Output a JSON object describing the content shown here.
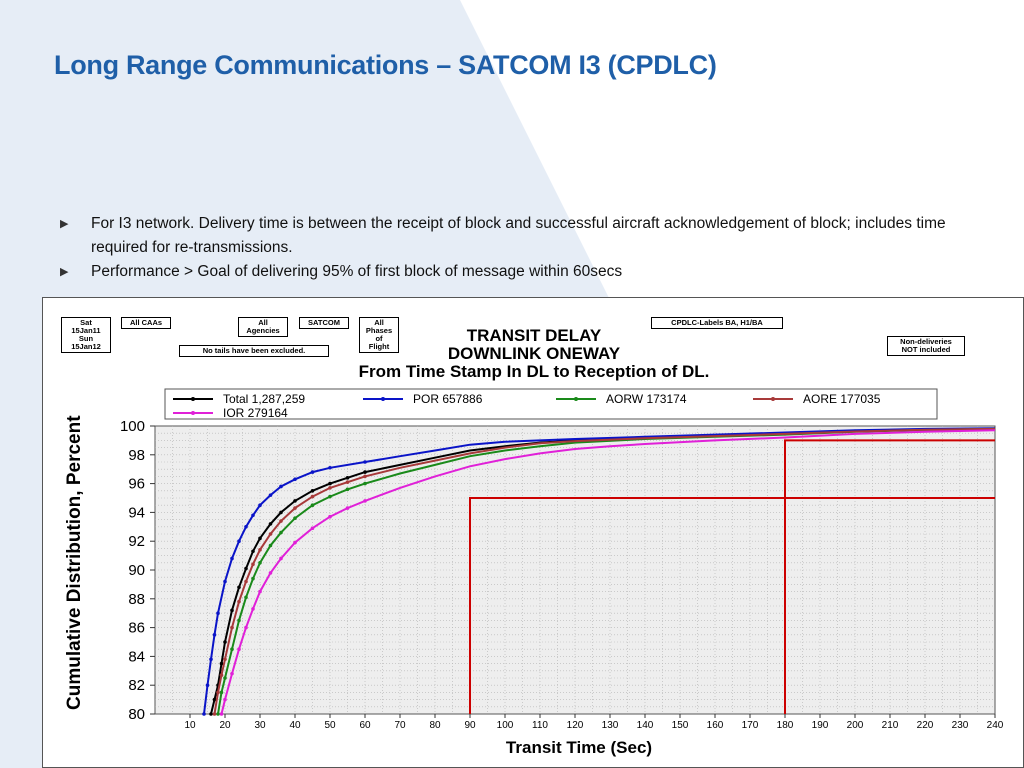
{
  "slide": {
    "title": "Long Range Communications – SATCOM I3 (CPDLC)",
    "bullets": [
      "For I3 network.  Delivery time is between the receipt of block and successful aircraft  acknowledgement of block; includes time required for re-transmissions.",
      "Performance > Goal of delivering 95% of first block of message within 60secs"
    ]
  },
  "filters": {
    "date": "Sat\n15Jan11\nSun\n15Jan12",
    "caas": "All CAAs",
    "agencies": "All\nAgencies",
    "network": "SATCOM",
    "phases": "All\nPhases\nof\nFlight",
    "tails": "No tails have been excluded.",
    "labels": "CPDLC-Labels BA, H1/BA",
    "nondelivery": "Non-deliveries\nNOT included"
  },
  "chart_data": {
    "type": "line",
    "title_lines": [
      "TRANSIT DELAY",
      "DOWNLINK ONEWAY",
      "From Time Stamp In DL to Reception of DL."
    ],
    "xlabel": "Transit Time (Sec)",
    "ylabel": "Cumulative Distribution, Percent",
    "xlim": [
      0,
      240
    ],
    "ylim": [
      80,
      100
    ],
    "x_ticks": [
      10,
      20,
      30,
      40,
      50,
      60,
      70,
      80,
      90,
      100,
      110,
      120,
      130,
      140,
      150,
      160,
      170,
      180,
      190,
      200,
      210,
      220,
      230,
      240
    ],
    "y_ticks": [
      80,
      82,
      84,
      86,
      88,
      90,
      92,
      94,
      96,
      98,
      100
    ],
    "grid": true,
    "legend_position": "top",
    "series": [
      {
        "name": "Total  1,287,259",
        "color": "#000000",
        "points": [
          [
            16,
            80
          ],
          [
            17,
            81
          ],
          [
            18,
            82
          ],
          [
            19,
            83.5
          ],
          [
            20,
            85
          ],
          [
            22,
            87.2
          ],
          [
            24,
            88.8
          ],
          [
            26,
            90.1
          ],
          [
            28,
            91.3
          ],
          [
            30,
            92.2
          ],
          [
            33,
            93.2
          ],
          [
            36,
            94.0
          ],
          [
            40,
            94.8
          ],
          [
            45,
            95.5
          ],
          [
            50,
            96.0
          ],
          [
            55,
            96.4
          ],
          [
            60,
            96.8
          ],
          [
            70,
            97.3
          ],
          [
            80,
            97.8
          ],
          [
            90,
            98.3
          ],
          [
            100,
            98.6
          ],
          [
            110,
            98.85
          ],
          [
            120,
            99.0
          ],
          [
            140,
            99.2
          ],
          [
            160,
            99.35
          ],
          [
            180,
            99.5
          ],
          [
            200,
            99.65
          ],
          [
            220,
            99.75
          ],
          [
            240,
            99.8
          ]
        ]
      },
      {
        "name": "POR 657886",
        "color": "#0a14c8",
        "points": [
          [
            14,
            80
          ],
          [
            15,
            82
          ],
          [
            16,
            83.8
          ],
          [
            17,
            85.5
          ],
          [
            18,
            87
          ],
          [
            20,
            89.2
          ],
          [
            22,
            90.8
          ],
          [
            24,
            92
          ],
          [
            26,
            93
          ],
          [
            28,
            93.8
          ],
          [
            30,
            94.5
          ],
          [
            33,
            95.2
          ],
          [
            36,
            95.8
          ],
          [
            40,
            96.3
          ],
          [
            45,
            96.8
          ],
          [
            50,
            97.1
          ],
          [
            60,
            97.5
          ],
          [
            70,
            97.9
          ],
          [
            80,
            98.3
          ],
          [
            90,
            98.7
          ],
          [
            100,
            98.9
          ],
          [
            120,
            99.1
          ],
          [
            140,
            99.25
          ],
          [
            160,
            99.4
          ],
          [
            180,
            99.55
          ],
          [
            200,
            99.7
          ],
          [
            220,
            99.8
          ],
          [
            240,
            99.85
          ]
        ]
      },
      {
        "name": "AORW 173174",
        "color": "#1a8a1a",
        "points": [
          [
            18,
            80
          ],
          [
            19,
            81.5
          ],
          [
            20,
            82.5
          ],
          [
            22,
            84.5
          ],
          [
            24,
            86.5
          ],
          [
            26,
            88.1
          ],
          [
            28,
            89.4
          ],
          [
            30,
            90.5
          ],
          [
            33,
            91.7
          ],
          [
            36,
            92.6
          ],
          [
            40,
            93.6
          ],
          [
            45,
            94.5
          ],
          [
            50,
            95.1
          ],
          [
            55,
            95.6
          ],
          [
            60,
            96.0
          ],
          [
            70,
            96.7
          ],
          [
            80,
            97.3
          ],
          [
            90,
            97.9
          ],
          [
            100,
            98.3
          ],
          [
            110,
            98.6
          ],
          [
            120,
            98.85
          ],
          [
            140,
            99.1
          ],
          [
            160,
            99.25
          ],
          [
            180,
            99.4
          ],
          [
            200,
            99.6
          ],
          [
            220,
            99.72
          ],
          [
            240,
            99.8
          ]
        ]
      },
      {
        "name": "AORE 177035",
        "color": "#a83a3a",
        "points": [
          [
            17,
            80
          ],
          [
            18,
            81.5
          ],
          [
            19,
            82.7
          ],
          [
            20,
            83.8
          ],
          [
            22,
            86
          ],
          [
            24,
            87.8
          ],
          [
            26,
            89.2
          ],
          [
            28,
            90.4
          ],
          [
            30,
            91.4
          ],
          [
            33,
            92.5
          ],
          [
            36,
            93.4
          ],
          [
            40,
            94.3
          ],
          [
            45,
            95.1
          ],
          [
            50,
            95.7
          ],
          [
            55,
            96.1
          ],
          [
            60,
            96.5
          ],
          [
            70,
            97.1
          ],
          [
            80,
            97.6
          ],
          [
            90,
            98.1
          ],
          [
            100,
            98.5
          ],
          [
            110,
            98.8
          ],
          [
            120,
            98.95
          ],
          [
            140,
            99.15
          ],
          [
            160,
            99.3
          ],
          [
            180,
            99.45
          ],
          [
            200,
            99.62
          ],
          [
            220,
            99.74
          ],
          [
            240,
            99.8
          ]
        ]
      },
      {
        "name": "IOR 279164",
        "color": "#e020d8",
        "points": [
          [
            19,
            80
          ],
          [
            20,
            81
          ],
          [
            22,
            82.8
          ],
          [
            24,
            84.5
          ],
          [
            26,
            86
          ],
          [
            28,
            87.3
          ],
          [
            30,
            88.5
          ],
          [
            33,
            89.8
          ],
          [
            36,
            90.8
          ],
          [
            40,
            91.9
          ],
          [
            45,
            92.9
          ],
          [
            50,
            93.7
          ],
          [
            55,
            94.3
          ],
          [
            60,
            94.8
          ],
          [
            70,
            95.7
          ],
          [
            80,
            96.5
          ],
          [
            90,
            97.2
          ],
          [
            100,
            97.7
          ],
          [
            110,
            98.1
          ],
          [
            120,
            98.4
          ],
          [
            130,
            98.6
          ],
          [
            140,
            98.75
          ],
          [
            160,
            99.0
          ],
          [
            180,
            99.2
          ],
          [
            200,
            99.45
          ],
          [
            220,
            99.6
          ],
          [
            240,
            99.7
          ]
        ]
      }
    ],
    "reference_lines": [
      {
        "color": "#cc0000",
        "x": 90,
        "y": 95
      },
      {
        "color": "#cc0000",
        "x": 180,
        "y": 99
      }
    ]
  },
  "colors": {
    "title": "#1f5fa8",
    "background_shape": "#e3ebf5",
    "reference": "#cc0000"
  }
}
